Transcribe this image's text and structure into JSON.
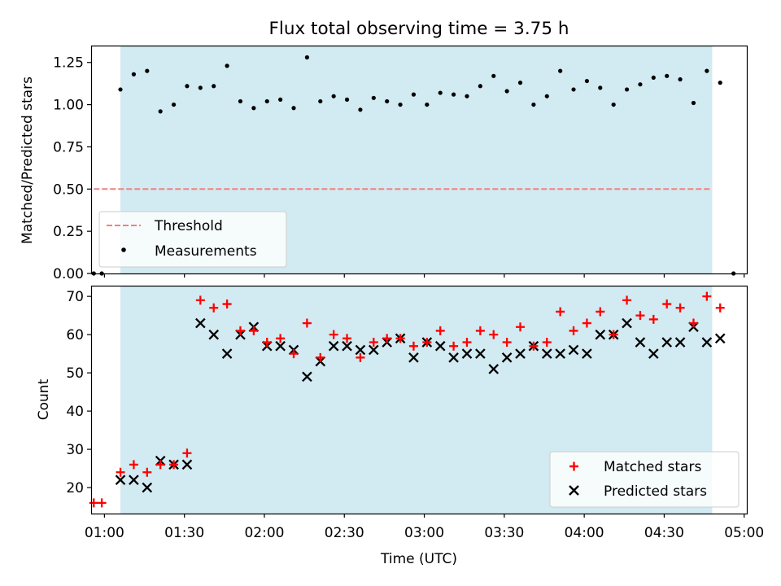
{
  "title": "Flux total observing time = 3.75 h",
  "colors": {
    "band": "#add8e6",
    "threshold": "#f08080",
    "matched": "#ff0000",
    "predicted": "#000000",
    "measurement": "#000000"
  },
  "chart_data": [
    {
      "type": "scatter",
      "panel": "top",
      "ylabel": "Matched/Predicted stars",
      "ylim": [
        0,
        1.35
      ],
      "yticks": [
        "0.00",
        "0.25",
        "0.50",
        "0.75",
        "1.00",
        "1.25"
      ],
      "ytick_values": [
        0,
        0.25,
        0.5,
        0.75,
        1.0,
        1.25
      ],
      "x_range": [
        "00:55",
        "05:01"
      ],
      "observing_band": [
        "01:06",
        "04:48"
      ],
      "threshold": {
        "value": 0.5,
        "x_range": [
          "00:56",
          "04:48"
        ]
      },
      "legend": {
        "location": "lower-left",
        "entries": [
          "Threshold",
          "Measurements"
        ]
      },
      "series": [
        {
          "name": "Measurements",
          "x": [
            "00:56",
            "00:59",
            "01:06",
            "01:11",
            "01:16",
            "01:21",
            "01:26",
            "01:31",
            "01:36",
            "01:41",
            "01:46",
            "01:51",
            "01:56",
            "02:01",
            "02:06",
            "02:11",
            "02:16",
            "02:21",
            "02:26",
            "02:31",
            "02:36",
            "02:41",
            "02:46",
            "02:51",
            "02:56",
            "03:01",
            "03:06",
            "03:11",
            "03:16",
            "03:21",
            "03:26",
            "03:31",
            "03:36",
            "03:41",
            "03:46",
            "03:51",
            "03:56",
            "04:01",
            "04:06",
            "04:11",
            "04:16",
            "04:21",
            "04:26",
            "04:31",
            "04:36",
            "04:41",
            "04:46",
            "04:51",
            "04:56"
          ],
          "y": [
            0.0,
            0.0,
            1.09,
            1.18,
            1.2,
            0.96,
            1.0,
            1.11,
            1.1,
            1.11,
            1.23,
            1.02,
            0.98,
            1.02,
            1.03,
            0.98,
            1.28,
            1.02,
            1.05,
            1.03,
            0.97,
            1.04,
            1.02,
            1.0,
            1.06,
            1.0,
            1.07,
            1.06,
            1.05,
            1.11,
            1.17,
            1.08,
            1.13,
            1.0,
            1.05,
            1.2,
            1.09,
            1.14,
            1.1,
            1.0,
            1.09,
            1.12,
            1.16,
            1.17,
            1.15,
            1.01,
            1.2,
            1.13,
            0.0
          ]
        }
      ]
    },
    {
      "type": "scatter",
      "panel": "bottom",
      "xlabel": "Time (UTC)",
      "ylabel": "Count",
      "ylim": [
        13.2,
        72.8
      ],
      "yticks": [
        "20",
        "30",
        "40",
        "50",
        "60",
        "70"
      ],
      "ytick_values": [
        20,
        30,
        40,
        50,
        60,
        70
      ],
      "xticks": [
        "01:00",
        "01:30",
        "02:00",
        "02:30",
        "03:00",
        "03:30",
        "04:00",
        "04:30",
        "05:00"
      ],
      "xtick_values": [
        "01:00",
        "01:30",
        "02:00",
        "02:30",
        "03:00",
        "03:30",
        "04:00",
        "04:30",
        "05:00"
      ],
      "x_range": [
        "00:55",
        "05:01"
      ],
      "observing_band": [
        "01:06",
        "04:48"
      ],
      "legend": {
        "location": "lower-right",
        "entries": [
          "Matched stars",
          "Predicted stars"
        ]
      },
      "series": [
        {
          "name": "Matched stars",
          "x": [
            "00:56",
            "00:59",
            "01:06",
            "01:11",
            "01:16",
            "01:21",
            "01:26",
            "01:31",
            "01:36",
            "01:41",
            "01:46",
            "01:51",
            "01:56",
            "02:01",
            "02:06",
            "02:11",
            "02:16",
            "02:21",
            "02:26",
            "02:31",
            "02:36",
            "02:41",
            "02:46",
            "02:51",
            "02:56",
            "03:01",
            "03:06",
            "03:11",
            "03:16",
            "03:21",
            "03:26",
            "03:31",
            "03:36",
            "03:41",
            "03:46",
            "03:51",
            "03:56",
            "04:01",
            "04:06",
            "04:11",
            "04:16",
            "04:21",
            "04:26",
            "04:31",
            "04:36",
            "04:41",
            "04:46",
            "04:51"
          ],
          "y": [
            16,
            16,
            24,
            26,
            24,
            26,
            26,
            29,
            69,
            67,
            68,
            61,
            61,
            58,
            59,
            55,
            63,
            54,
            60,
            59,
            54,
            58,
            59,
            59,
            57,
            58,
            61,
            57,
            58,
            61,
            60,
            58,
            62,
            57,
            58,
            66,
            61,
            63,
            66,
            60,
            69,
            65,
            64,
            68,
            67,
            63,
            70,
            67
          ]
        },
        {
          "name": "Predicted stars",
          "x": [
            "01:06",
            "01:11",
            "01:16",
            "01:21",
            "01:26",
            "01:31",
            "01:36",
            "01:41",
            "01:46",
            "01:51",
            "01:56",
            "02:01",
            "02:06",
            "02:11",
            "02:16",
            "02:21",
            "02:26",
            "02:31",
            "02:36",
            "02:41",
            "02:46",
            "02:51",
            "02:56",
            "03:01",
            "03:06",
            "03:11",
            "03:16",
            "03:21",
            "03:26",
            "03:31",
            "03:36",
            "03:41",
            "03:46",
            "03:51",
            "03:56",
            "04:01",
            "04:06",
            "04:11",
            "04:16",
            "04:21",
            "04:26",
            "04:31",
            "04:36",
            "04:41",
            "04:46",
            "04:51"
          ],
          "y": [
            22,
            22,
            20,
            27,
            26,
            26,
            63,
            60,
            55,
            60,
            62,
            57,
            57,
            56,
            49,
            53,
            57,
            57,
            56,
            56,
            58,
            59,
            54,
            58,
            57,
            54,
            55,
            55,
            51,
            54,
            55,
            57,
            55,
            55,
            56,
            55,
            60,
            60,
            63,
            58,
            55,
            58,
            58,
            62,
            58,
            59
          ]
        }
      ]
    }
  ]
}
